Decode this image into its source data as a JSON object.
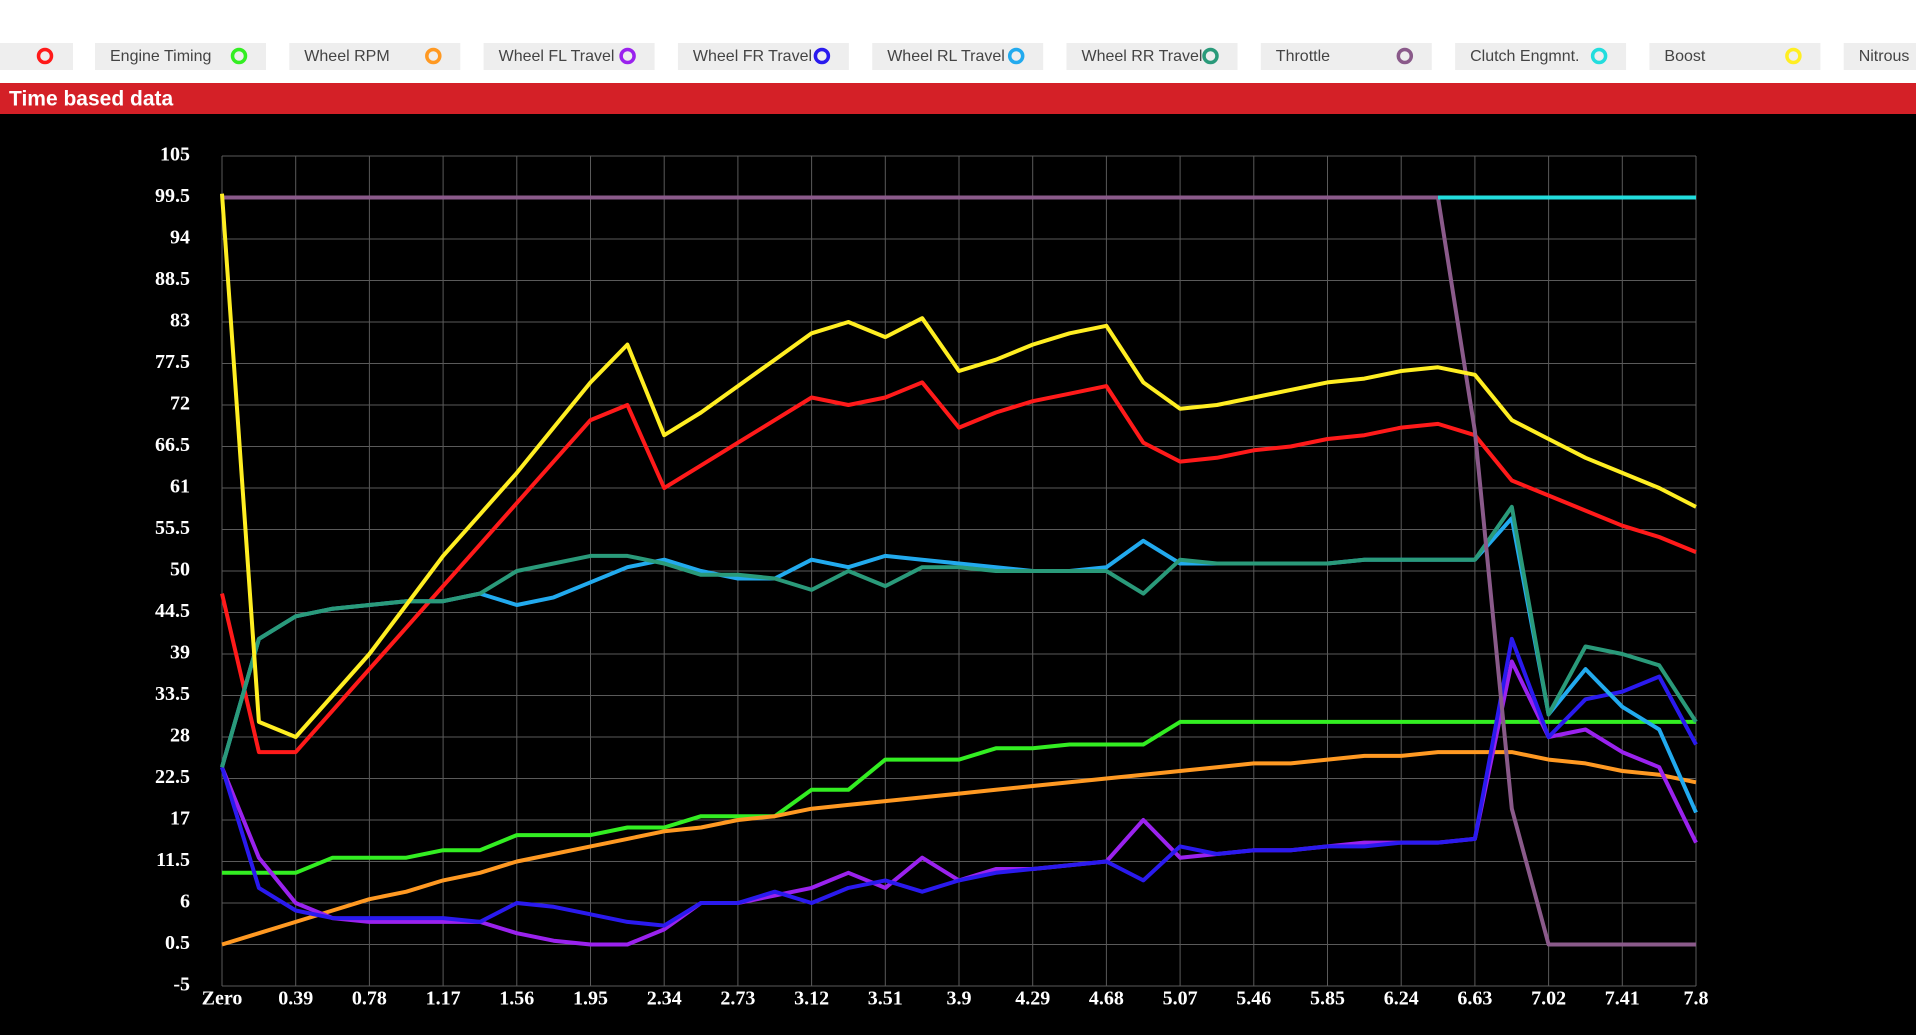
{
  "chart_data": {
    "type": "line",
    "title": "Time based data",
    "xlim": [
      0,
      7.8
    ],
    "xticks": [
      {
        "value": 0,
        "label": "Zero"
      },
      0.39,
      0.78,
      1.17,
      1.56,
      1.95,
      2.34,
      2.73,
      3.12,
      3.51,
      3.9,
      4.29,
      4.68,
      5.07,
      5.46,
      5.85,
      6.24,
      6.63,
      7.02,
      7.41,
      7.8
    ],
    "ylim": [
      -5,
      105
    ],
    "yticks": [
      -5,
      0.5,
      6,
      11.5,
      17,
      22.5,
      28,
      33.5,
      39,
      44.5,
      50,
      55.5,
      61,
      66.5,
      72,
      77.5,
      83,
      88.5,
      94,
      99.5,
      105
    ],
    "grid": true,
    "x": [
      0,
      0.195,
      0.39,
      0.585,
      0.78,
      0.975,
      1.17,
      1.365,
      1.56,
      1.755,
      1.95,
      2.145,
      2.34,
      2.535,
      2.73,
      2.925,
      3.12,
      3.315,
      3.51,
      3.705,
      3.9,
      4.095,
      4.29,
      4.485,
      4.68,
      4.875,
      5.07,
      5.265,
      5.46,
      5.655,
      5.85,
      6.045,
      6.24,
      6.435,
      6.63,
      6.825,
      7.02,
      7.215,
      7.41,
      7.605,
      7.8
    ],
    "series": [
      {
        "name": null,
        "color": "#ff1a1a",
        "values": [
          47,
          26,
          26,
          31.5,
          37,
          42.5,
          48,
          53.5,
          59,
          64.5,
          70,
          72,
          61,
          64,
          67,
          70,
          73,
          72,
          73,
          75,
          69,
          71,
          72.5,
          73.5,
          74.5,
          67,
          64.5,
          65,
          66,
          66.5,
          67.5,
          68,
          69,
          69.5,
          68,
          62,
          60,
          58,
          56,
          54.5,
          52.5
        ]
      },
      {
        "name": "Engine Timing",
        "color": "#33ee22",
        "values": [
          10,
          10,
          10,
          12,
          12,
          12,
          13,
          13,
          15,
          15,
          15,
          16,
          16,
          17.5,
          17.5,
          17.5,
          21,
          21,
          25,
          25,
          25,
          26.5,
          26.5,
          27,
          27,
          27,
          30,
          30,
          30,
          30,
          30,
          30,
          30,
          30,
          30,
          30,
          30,
          30,
          30,
          30,
          30
        ]
      },
      {
        "name": "Wheel RPM",
        "color": "#ff9922",
        "values": [
          0.5,
          2,
          3.5,
          5,
          6.5,
          7.5,
          9,
          10,
          11.5,
          12.5,
          13.5,
          14.5,
          15.5,
          16,
          17,
          17.5,
          18.5,
          19,
          19.5,
          20,
          20.5,
          21,
          21.5,
          22,
          22.5,
          23,
          23.5,
          24,
          24.5,
          24.5,
          25,
          25.5,
          25.5,
          26,
          26,
          26,
          25,
          24.5,
          23.5,
          23,
          22
        ]
      },
      {
        "name": "Wheel FL Travel",
        "color": "#9a22ee",
        "values": [
          24,
          12,
          6,
          4,
          3.5,
          3.5,
          3.5,
          3.5,
          2,
          1,
          0.5,
          0.5,
          2.5,
          6,
          6,
          7,
          8,
          10,
          8,
          12,
          9,
          10.5,
          10.5,
          11,
          11.5,
          17,
          12,
          12.5,
          13,
          13,
          13.5,
          14,
          14,
          14,
          14.5,
          38,
          28,
          29,
          26,
          24,
          14
        ]
      },
      {
        "name": "Wheel FR Travel",
        "color": "#2a1aee",
        "values": [
          24,
          8,
          5,
          4,
          4,
          4,
          4,
          3.5,
          6,
          5.5,
          4.5,
          3.5,
          3,
          6,
          6,
          7.5,
          6,
          8,
          9,
          7.5,
          9,
          10,
          10.5,
          11,
          11.5,
          9,
          13.5,
          12.5,
          13,
          13,
          13.5,
          13.5,
          14,
          14,
          14.5,
          41,
          28,
          33,
          34,
          36,
          27
        ]
      },
      {
        "name": "Wheel RL Travel",
        "color": "#22aaee",
        "values": [
          24,
          41,
          44,
          45,
          45.5,
          46,
          46,
          47,
          45.5,
          46.5,
          48.5,
          50.5,
          51.5,
          50,
          49,
          49,
          51.5,
          50.5,
          52,
          51.5,
          51,
          50.5,
          50,
          50,
          50.5,
          54,
          51,
          51,
          51,
          51,
          51,
          51.5,
          51.5,
          51.5,
          51.5,
          57,
          31,
          37,
          32,
          29,
          18
        ]
      },
      {
        "name": "Wheel RR Travel",
        "color": "#2a9a7a",
        "values": [
          24,
          41,
          44,
          45,
          45.5,
          46,
          46,
          47,
          50,
          51,
          52,
          52,
          51,
          49.5,
          49.5,
          49,
          47.5,
          50,
          48,
          50.5,
          50.5,
          50,
          50,
          50,
          50,
          47,
          51.5,
          51,
          51,
          51,
          51,
          51.5,
          51.5,
          51.5,
          51.5,
          58.5,
          31,
          40,
          39,
          37.5,
          30
        ]
      },
      {
        "name": "Throttle",
        "color": "#8a5a8a",
        "values": [
          99.5,
          99.5,
          99.5,
          99.5,
          99.5,
          99.5,
          99.5,
          99.5,
          99.5,
          99.5,
          99.5,
          99.5,
          99.5,
          99.5,
          99.5,
          99.5,
          99.5,
          99.5,
          99.5,
          99.5,
          99.5,
          99.5,
          99.5,
          99.5,
          99.5,
          99.5,
          99.5,
          99.5,
          99.5,
          99.5,
          99.5,
          99.5,
          99.5,
          99.5,
          68.5,
          18.5,
          0.5,
          0.5,
          0.5,
          0.5,
          0.5
        ]
      },
      {
        "name": "Clutch Engmnt.",
        "color": "#22dddd",
        "values": [
          null,
          null,
          null,
          null,
          null,
          null,
          null,
          null,
          null,
          null,
          null,
          null,
          null,
          null,
          null,
          null,
          null,
          null,
          null,
          null,
          null,
          null,
          null,
          null,
          null,
          null,
          null,
          null,
          null,
          null,
          null,
          null,
          null,
          99.5,
          99.5,
          99.5,
          99.5,
          99.5,
          99.5,
          99.5,
          99.5
        ]
      },
      {
        "name": "Boost",
        "color": "#ffee22",
        "values": [
          100,
          30,
          28,
          33.5,
          39,
          45.5,
          52,
          57.5,
          63,
          69,
          75,
          80,
          68,
          71,
          74.5,
          78,
          81.5,
          83,
          81,
          83.5,
          76.5,
          78,
          80,
          81.5,
          82.5,
          75,
          71.5,
          72,
          73,
          74,
          75,
          75.5,
          76.5,
          77,
          76,
          70,
          67.5,
          65,
          63,
          61,
          58.5
        ]
      },
      {
        "name": "Nitrous",
        "values": [
          null,
          null,
          null,
          null,
          null,
          null,
          null,
          null,
          null,
          null,
          null,
          null,
          null,
          null,
          null,
          null,
          null,
          null,
          null,
          null,
          null,
          null,
          null,
          null,
          null,
          null,
          null,
          null,
          null,
          null,
          null,
          null,
          null,
          null,
          null,
          null,
          null,
          null,
          null,
          null,
          null
        ]
      }
    ]
  }
}
